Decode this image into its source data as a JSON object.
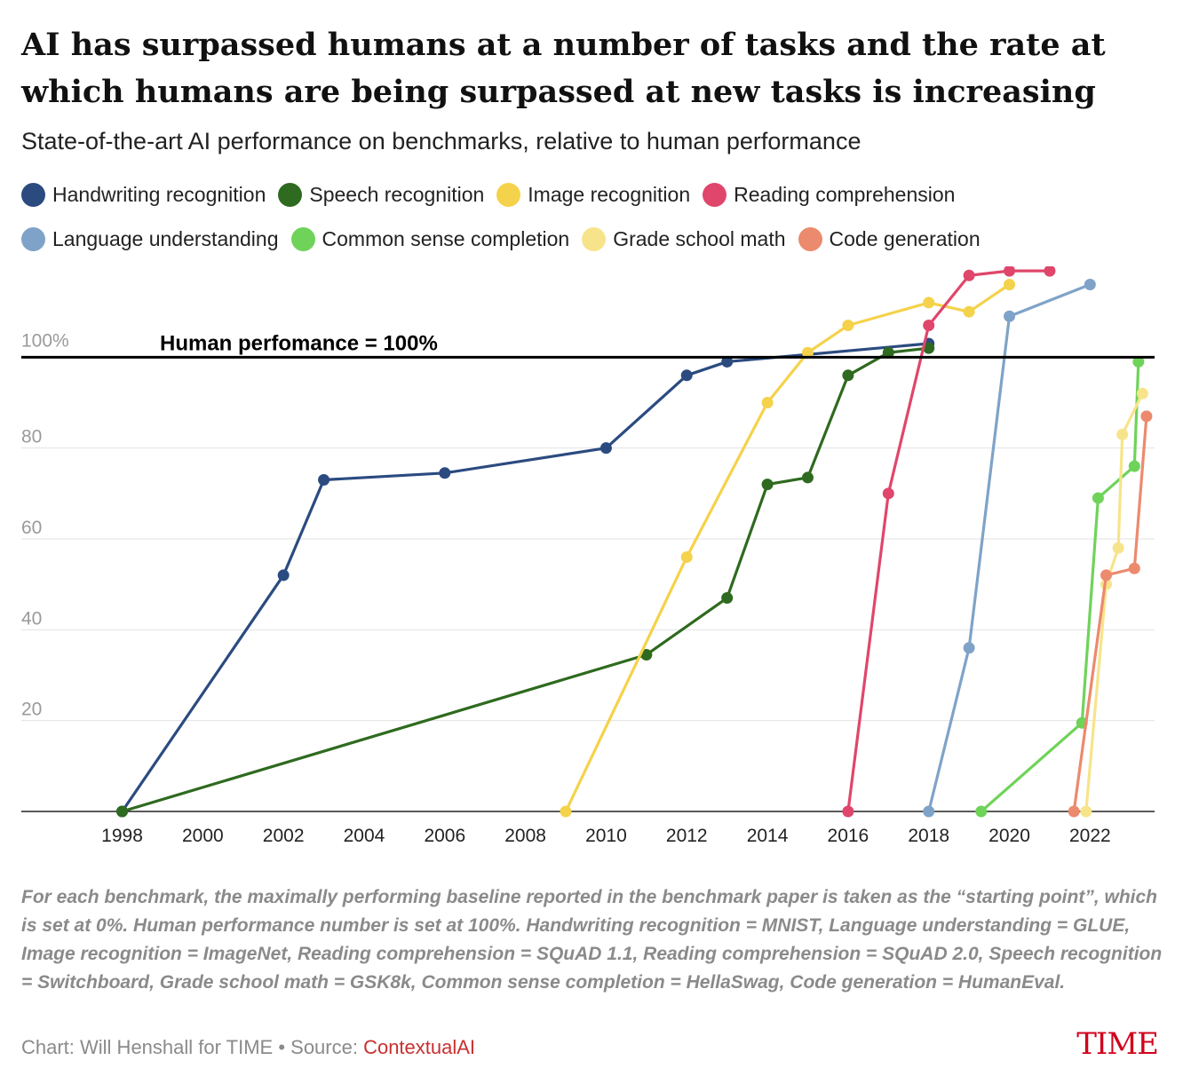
{
  "title": "AI has surpassed humans at a number of tasks and the rate at which humans are being surpassed at new tasks is increasing",
  "subtitle": "State-of-the-art AI performance on benchmarks, relative to human performance",
  "footnote": "For each benchmark, the maximally performing baseline reported in the benchmark paper is taken as the “starting point”, which is set at 0%. Human performance number is set at 100%. Handwriting recognition = MNIST, Language understanding = GLUE, Image recognition = ImageNet, Reading comprehension = SQuAD 1.1, Reading comprehension = SQuAD 2.0, Speech recognition = Switchboard, Grade school math = GSK8k, Common sense completion = HellaSwag, Code generation = HumanEval.",
  "credit": {
    "prefix": "Chart: Will Henshall for TIME • Source: ",
    "source": "ContextualAI"
  },
  "logo": "TIME",
  "chart_data": {
    "type": "line",
    "title": "AI has surpassed humans at a number of tasks and the rate at which humans are being surpassed at new tasks is increasing",
    "ylabel": "",
    "xlabel": "",
    "xlim": [
      1995.5,
      2023.6
    ],
    "ylim": [
      0,
      120
    ],
    "x_ticks": [
      1998,
      2000,
      2002,
      2004,
      2006,
      2008,
      2010,
      2012,
      2014,
      2016,
      2018,
      2020,
      2022
    ],
    "y_ticks": [
      20,
      40,
      60,
      80
    ],
    "y_ticks_labels": [
      "20",
      "40",
      "60",
      "80"
    ],
    "reference": {
      "value": 100,
      "axis_label": "100%",
      "label": "Human perfomance = 100%"
    },
    "series": [
      {
        "name": "Handwriting recognition",
        "color": "#2b4b80",
        "x": [
          1998,
          2002,
          2003,
          2006,
          2010,
          2012,
          2013,
          2018
        ],
        "y": [
          0,
          52,
          73,
          74.5,
          80,
          96,
          99,
          103
        ]
      },
      {
        "name": "Speech recognition",
        "color": "#2e6a1f",
        "x": [
          1998,
          2011,
          2013,
          2014,
          2015,
          2016,
          2017,
          2018
        ],
        "y": [
          0,
          34.5,
          47,
          72,
          73.5,
          96,
          101,
          102
        ]
      },
      {
        "name": "Image recognition",
        "color": "#f5d24b",
        "x": [
          2009,
          2012,
          2014,
          2015,
          2016,
          2018,
          2019,
          2020
        ],
        "y": [
          0,
          56,
          90,
          101,
          107,
          112,
          110,
          116
        ]
      },
      {
        "name": "Reading comprehension",
        "color": "#e0466b",
        "x": [
          2016,
          2017,
          2018,
          2019,
          2020,
          2021
        ],
        "y": [
          0,
          70,
          107,
          118,
          119,
          119
        ]
      },
      {
        "name": "Language understanding",
        "color": "#7fa3c8",
        "x": [
          2018,
          2019,
          2020,
          2022
        ],
        "y": [
          0,
          36,
          109,
          116
        ]
      },
      {
        "name": "Common sense completion",
        "color": "#6fd35a",
        "x": [
          2019.3,
          2021.8,
          2022.2,
          2023.1,
          2023.2
        ],
        "y": [
          0,
          19.5,
          69,
          76,
          99
        ]
      },
      {
        "name": "Grade school math",
        "color": "#f7e48a",
        "x": [
          2021.9,
          2022.4,
          2022.7,
          2022.8,
          2023.3
        ],
        "y": [
          0,
          50,
          58,
          83,
          92
        ]
      },
      {
        "name": "Code generation",
        "color": "#ec8a6e",
        "x": [
          2021.6,
          2022.4,
          2023.1,
          2023.4
        ],
        "y": [
          0,
          52,
          53.5,
          87
        ]
      }
    ]
  }
}
